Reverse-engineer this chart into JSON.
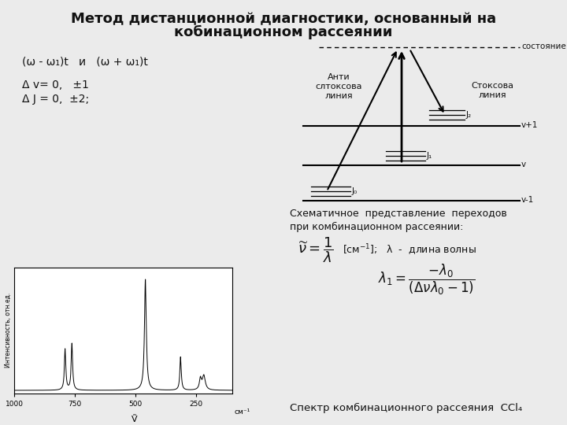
{
  "title_line1": "Метод дистанционной диагностики, основанный на",
  "title_line2": "кобинационном рассеянии",
  "bg_color": "#ebebeb",
  "text_color": "#111111",
  "formula1": "(ω - ω₁)t   и   (ω + ω₁)t",
  "formula2": "Δ v= 0,   ±1",
  "formula3": "Δ J = 0,  ±2;",
  "diagram_label_top": "состояние",
  "diagram_label_antistokes": "Анти\nслтоксова\nлиния",
  "diagram_label_stokes": "Стоксова\nлиния",
  "diagram_label_j2": "J₂",
  "diagram_label_j1": "J₁",
  "diagram_label_j0": "J₀",
  "diagram_label_vp1": "v+1",
  "diagram_label_v": "v",
  "diagram_label_vm1": "v-1",
  "schematic_text1": "Схематичное  представление  переходов",
  "schematic_text2": "при комбинационном рассеянии:",
  "spectrum_caption": "Спектр комбинационного рассеяния  CCl₄",
  "ylabel_spectrum": "Интенсивность, отн.ед.",
  "xlabel_spectrum": "Ṽ"
}
